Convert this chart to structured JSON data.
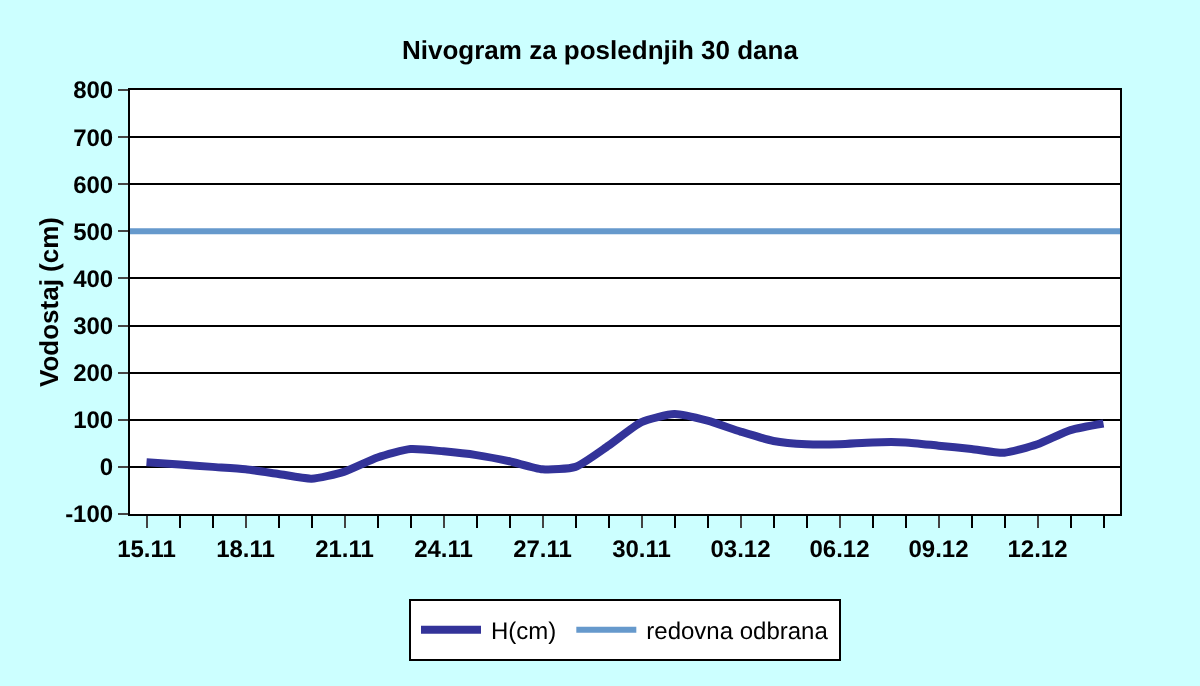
{
  "chart_data": {
    "type": "line",
    "title": "Nivogram za poslednjih 30 dana",
    "ylabel": "Vodostaj (cm)",
    "categories": [
      "15.11",
      null,
      null,
      "18.11",
      null,
      null,
      "21.11",
      null,
      null,
      "24.11",
      null,
      null,
      "27.11",
      null,
      null,
      "30.11",
      null,
      null,
      "03.12",
      null,
      null,
      "06.12",
      null,
      null,
      "09.12",
      null,
      null,
      "12.12",
      null,
      null
    ],
    "series": [
      {
        "name": "H(cm)",
        "color": "#333399",
        "values": [
          10,
          5,
          0,
          -5,
          -15,
          -25,
          -10,
          20,
          38,
          33,
          25,
          12,
          -5,
          0,
          45,
          95,
          112,
          98,
          75,
          55,
          48,
          48,
          52,
          52,
          45,
          38,
          30,
          48,
          78,
          92
        ]
      }
    ],
    "ref_lines": [
      {
        "axis": "y",
        "value": 500,
        "label": "redovna odbrana",
        "color": "#6699cc"
      }
    ],
    "ylim": [
      -100,
      800
    ],
    "yticks": [
      -100,
      0,
      100,
      200,
      300,
      400,
      500,
      600,
      700,
      800
    ],
    "grid": "y",
    "legend": "bottom",
    "marker": "none",
    "line_style": "solid"
  }
}
